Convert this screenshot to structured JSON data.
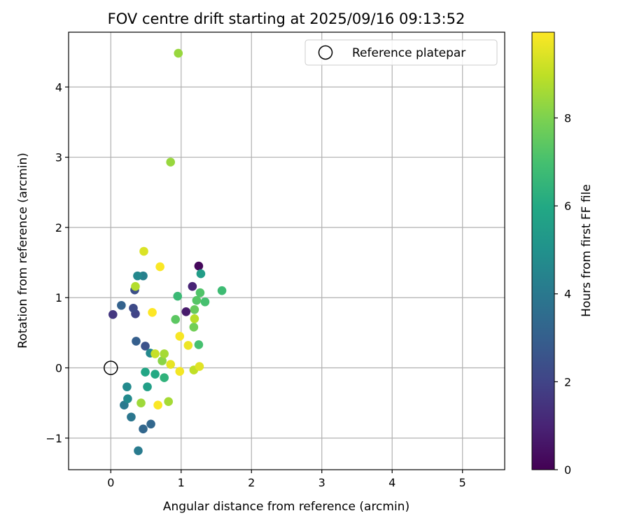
{
  "chart_data": {
    "type": "scatter",
    "title": "FOV centre drift starting at 2025/09/16 09:13:52",
    "xlabel": "Angular distance from reference (arcmin)",
    "ylabel": "Rotation from reference (arcmin)",
    "colorbar_label": "Hours from first FF file",
    "xlim": [
      -0.6,
      5.6
    ],
    "ylim": [
      -1.45,
      4.78
    ],
    "clim": [
      0,
      9.95
    ],
    "xticks": [
      0,
      1,
      2,
      3,
      4,
      5
    ],
    "yticks": [
      -1,
      0,
      1,
      2,
      3,
      4
    ],
    "cticks": [
      0,
      2,
      4,
      6,
      8
    ],
    "grid": true,
    "legend": {
      "location": "top-right",
      "entries": [
        "Reference platepar"
      ]
    },
    "reference": {
      "x": 0,
      "y": 0
    },
    "points": [
      {
        "x": 1.25,
        "y": 1.45,
        "h": 0.2
      },
      {
        "x": 1.07,
        "y": 0.8,
        "h": 0.7
      },
      {
        "x": 1.16,
        "y": 1.16,
        "h": 1.0
      },
      {
        "x": 0.03,
        "y": 0.76,
        "h": 1.6
      },
      {
        "x": 0.35,
        "y": 0.77,
        "h": 2.0
      },
      {
        "x": 0.32,
        "y": 0.85,
        "h": 2.2
      },
      {
        "x": 0.34,
        "y": 1.11,
        "h": 2.4
      },
      {
        "x": 0.49,
        "y": 0.31,
        "h": 2.5
      },
      {
        "x": 0.36,
        "y": 0.38,
        "h": 3.0
      },
      {
        "x": 0.15,
        "y": 0.89,
        "h": 3.1
      },
      {
        "x": 0.46,
        "y": -0.87,
        "h": 3.3
      },
      {
        "x": 0.57,
        "y": -0.8,
        "h": 3.3
      },
      {
        "x": 0.29,
        "y": -0.7,
        "h": 3.9
      },
      {
        "x": 0.19,
        "y": -0.53,
        "h": 4.0
      },
      {
        "x": 0.39,
        "y": -1.18,
        "h": 4.1
      },
      {
        "x": 0.46,
        "y": 1.31,
        "h": 4.3
      },
      {
        "x": 0.38,
        "y": 1.31,
        "h": 4.6
      },
      {
        "x": 0.24,
        "y": -0.44,
        "h": 4.7
      },
      {
        "x": 0.23,
        "y": -0.27,
        "h": 4.7
      },
      {
        "x": 0.56,
        "y": 0.21,
        "h": 4.6
      },
      {
        "x": 1.28,
        "y": 1.34,
        "h": 5.5
      },
      {
        "x": 0.52,
        "y": -0.27,
        "h": 5.6
      },
      {
        "x": 0.49,
        "y": -0.06,
        "h": 5.9
      },
      {
        "x": 0.63,
        "y": -0.09,
        "h": 6.0
      },
      {
        "x": 0.76,
        "y": -0.14,
        "h": 6.4
      },
      {
        "x": 1.58,
        "y": 1.1,
        "h": 6.8
      },
      {
        "x": 0.95,
        "y": 1.02,
        "h": 6.7
      },
      {
        "x": 1.34,
        "y": 0.94,
        "h": 7.0
      },
      {
        "x": 1.25,
        "y": 0.33,
        "h": 7.0
      },
      {
        "x": 1.27,
        "y": 1.07,
        "h": 7.2
      },
      {
        "x": 1.22,
        "y": 0.96,
        "h": 7.3
      },
      {
        "x": 0.92,
        "y": 0.69,
        "h": 7.4
      },
      {
        "x": 1.19,
        "y": 0.83,
        "h": 7.6
      },
      {
        "x": 1.18,
        "y": 0.58,
        "h": 7.8
      },
      {
        "x": 0.73,
        "y": 0.1,
        "h": 8.2
      },
      {
        "x": 0.96,
        "y": 4.48,
        "h": 8.4
      },
      {
        "x": 0.85,
        "y": 2.93,
        "h": 8.4
      },
      {
        "x": 0.43,
        "y": -0.5,
        "h": 8.5
      },
      {
        "x": 0.82,
        "y": -0.48,
        "h": 8.6
      },
      {
        "x": 0.76,
        "y": 0.2,
        "h": 8.6
      },
      {
        "x": 0.35,
        "y": 1.16,
        "h": 8.8
      },
      {
        "x": 1.19,
        "y": 0.7,
        "h": 8.9
      },
      {
        "x": 1.18,
        "y": -0.03,
        "h": 9.0
      },
      {
        "x": 0.63,
        "y": 0.2,
        "h": 9.1
      },
      {
        "x": 0.47,
        "y": 1.66,
        "h": 9.4
      },
      {
        "x": 1.26,
        "y": 0.02,
        "h": 9.5
      },
      {
        "x": 0.85,
        "y": 0.05,
        "h": 9.6
      },
      {
        "x": 1.1,
        "y": 0.32,
        "h": 9.7
      },
      {
        "x": 0.98,
        "y": -0.05,
        "h": 9.8
      },
      {
        "x": 0.98,
        "y": 0.45,
        "h": 9.85
      },
      {
        "x": 0.7,
        "y": 1.44,
        "h": 9.9
      },
      {
        "x": 0.67,
        "y": -0.53,
        "h": 9.9
      },
      {
        "x": 0.59,
        "y": 0.79,
        "h": 9.95
      }
    ]
  }
}
